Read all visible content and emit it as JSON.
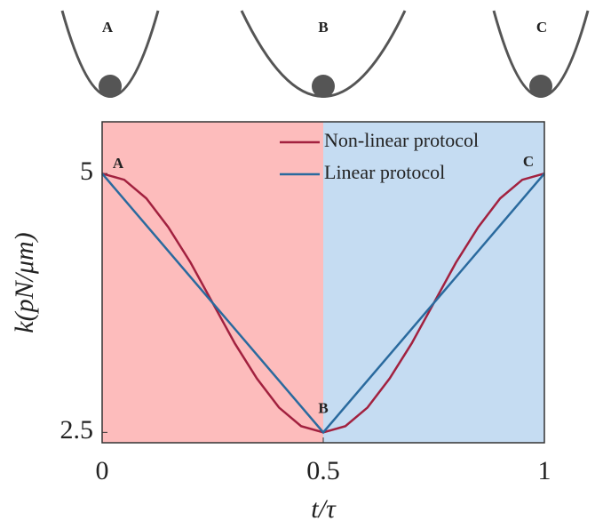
{
  "wells": [
    "A",
    "B",
    "C"
  ],
  "chart_data": {
    "type": "line",
    "xlabel": "t/τ",
    "ylabel": "k(pN/μm)",
    "xlim": [
      0,
      1
    ],
    "ylim": [
      2.4,
      5.5
    ],
    "xticks": [
      0,
      0.5,
      1
    ],
    "yticks": [
      2.5,
      5
    ],
    "legend": "upper right",
    "regions": [
      {
        "xlim": [
          0,
          0.5
        ],
        "color": "#fdbcbc"
      },
      {
        "xlim": [
          0.5,
          1
        ],
        "color": "#c5dcf2"
      }
    ],
    "series": [
      {
        "name": "Non-linear protocol",
        "color": "#a2213f",
        "x": [
          0,
          0.05,
          0.1,
          0.15,
          0.2,
          0.25,
          0.3,
          0.35,
          0.4,
          0.45,
          0.5,
          0.55,
          0.6,
          0.65,
          0.7,
          0.75,
          0.8,
          0.85,
          0.9,
          0.95,
          1
        ],
        "values": [
          5,
          4.94,
          4.76,
          4.48,
          4.14,
          3.75,
          3.36,
          3.02,
          2.74,
          2.56,
          2.5,
          2.56,
          2.74,
          3.02,
          3.36,
          3.75,
          4.14,
          4.48,
          4.76,
          4.94,
          5
        ]
      },
      {
        "name": "Linear protocol",
        "color": "#2a6a9e",
        "x": [
          0,
          0.5,
          1
        ],
        "values": [
          5,
          2.5,
          5
        ]
      }
    ],
    "annotations": [
      {
        "text": "A",
        "x": 0,
        "y": 5
      },
      {
        "text": "B",
        "x": 0.5,
        "y": 2.5
      },
      {
        "text": "C",
        "x": 1,
        "y": 5
      }
    ]
  }
}
